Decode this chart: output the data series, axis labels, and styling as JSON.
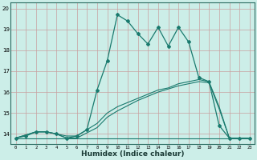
{
  "xlabel": "Humidex (Indice chaleur)",
  "bg_color": "#cceee8",
  "line_color": "#1a7a6e",
  "grid_color": "#b0d8d0",
  "xlim": [
    -0.5,
    23.5
  ],
  "ylim": [
    13.5,
    20.3
  ],
  "yticks": [
    14,
    15,
    16,
    17,
    18,
    19,
    20
  ],
  "xticks": [
    0,
    1,
    2,
    3,
    4,
    5,
    6,
    7,
    8,
    9,
    10,
    11,
    12,
    13,
    14,
    15,
    16,
    17,
    18,
    19,
    20,
    21,
    22,
    23
  ],
  "lines": [
    {
      "x": [
        0,
        1,
        2,
        3,
        4,
        5,
        6,
        7,
        8,
        9,
        10,
        11,
        12,
        13,
        14,
        15,
        16,
        17,
        18,
        19,
        20,
        21,
        22,
        23
      ],
      "y": [
        13.8,
        13.8,
        13.8,
        13.8,
        13.8,
        13.8,
        13.8,
        13.8,
        13.8,
        13.8,
        13.8,
        13.8,
        13.8,
        13.8,
        13.8,
        13.8,
        13.8,
        13.8,
        13.8,
        13.8,
        13.8,
        13.8,
        13.8,
        13.8
      ],
      "marker": false
    },
    {
      "x": [
        0,
        2,
        3,
        4,
        5,
        6,
        7,
        8,
        9,
        10,
        11,
        12,
        13,
        14,
        15,
        16,
        17,
        18,
        19,
        20,
        21,
        22,
        23
      ],
      "y": [
        13.8,
        14.1,
        14.1,
        14.0,
        13.9,
        13.9,
        14.2,
        14.5,
        15.0,
        15.3,
        15.5,
        15.7,
        15.9,
        16.1,
        16.2,
        16.4,
        16.5,
        16.6,
        16.5,
        15.3,
        13.8,
        13.8,
        13.8
      ],
      "marker": false
    },
    {
      "x": [
        0,
        2,
        3,
        4,
        5,
        6,
        7,
        8,
        9,
        10,
        11,
        12,
        13,
        14,
        15,
        16,
        17,
        18,
        19,
        20,
        21,
        22,
        23
      ],
      "y": [
        13.8,
        14.1,
        14.1,
        14.0,
        13.8,
        13.8,
        14.05,
        14.3,
        14.8,
        15.1,
        15.35,
        15.6,
        15.8,
        16.0,
        16.15,
        16.3,
        16.4,
        16.5,
        16.45,
        15.2,
        13.8,
        13.8,
        13.8
      ],
      "marker": false
    },
    {
      "x": [
        0,
        1,
        2,
        3,
        4,
        5,
        6,
        7,
        8,
        9,
        10,
        11,
        12,
        13,
        14,
        15,
        16,
        17,
        18,
        19,
        20,
        21,
        22,
        23
      ],
      "y": [
        13.8,
        13.9,
        14.1,
        14.1,
        14.0,
        13.8,
        13.9,
        14.2,
        16.1,
        17.5,
        19.7,
        19.4,
        18.8,
        18.3,
        19.1,
        18.2,
        19.1,
        18.4,
        16.7,
        16.5,
        14.4,
        13.8,
        13.8,
        13.8
      ],
      "marker": true
    }
  ]
}
